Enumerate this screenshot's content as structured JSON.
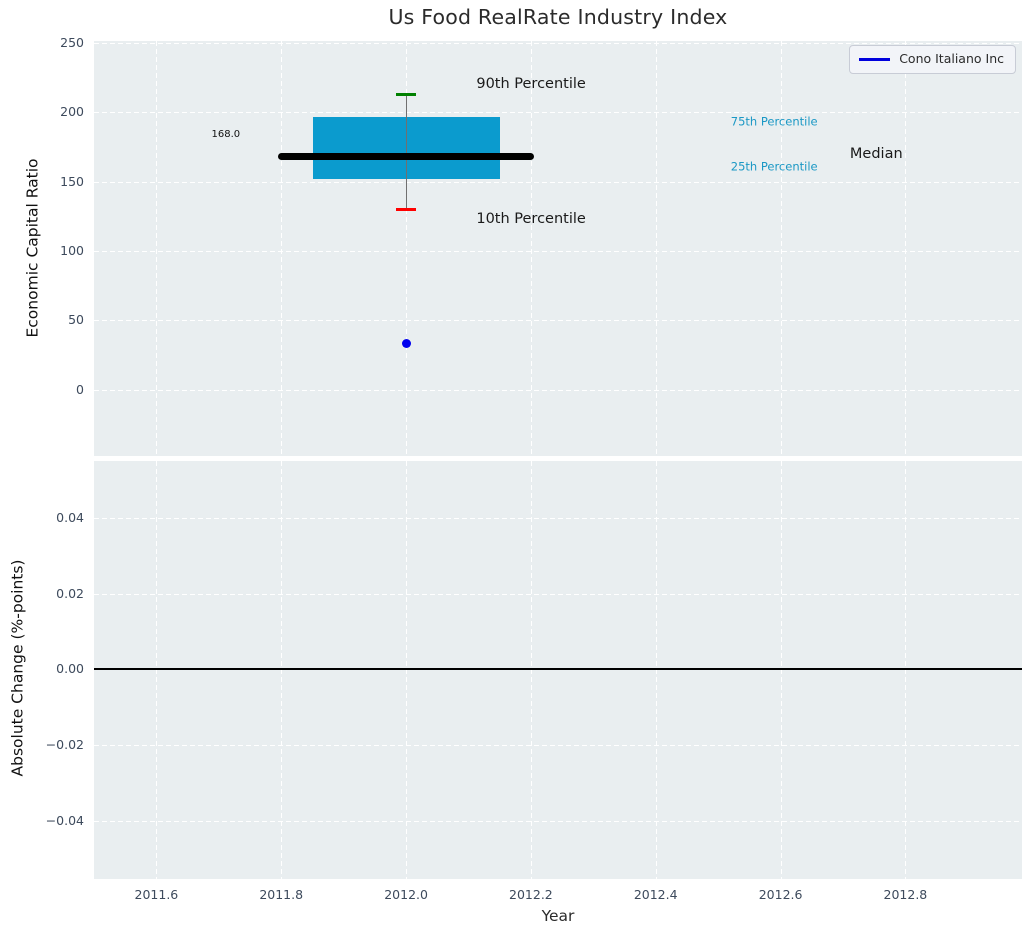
{
  "chart_data": {
    "type": "boxplot",
    "title": "Us Food RealRate Industry Index",
    "xlabel": "Year",
    "xlim": [
      2011.5,
      2012.9868
    ],
    "xticks": [
      2011.6,
      2011.8,
      2012.0,
      2012.2,
      2012.4,
      2012.6,
      2012.8
    ],
    "xtick_labels": [
      "2011.6",
      "2011.8",
      "2012.0",
      "2012.2",
      "2012.4",
      "2012.6",
      "2012.8"
    ],
    "legend": {
      "label": "Cono Italiano Inc",
      "position": "upper right"
    },
    "top": {
      "ylabel": "Economic Capital Ratio",
      "ylim": [
        -47.7,
        251.4
      ],
      "yticks": [
        250,
        200,
        150,
        100,
        50,
        0
      ],
      "ytick_labels": [
        "250",
        "200",
        "150",
        "100",
        "50",
        "0"
      ],
      "grid": true,
      "box": {
        "x": 2012.0,
        "p10": 130,
        "p25": 152,
        "median": 168,
        "p75": 197,
        "p90": 213,
        "median_label": "168.0",
        "box_left": 2011.85,
        "box_right": 2012.15,
        "median_left": 2011.795,
        "median_right": 2012.205,
        "cap_halfwidth_years": 0.0155
      },
      "point": {
        "name": "Cono Italiano Inc",
        "x": 2012.0,
        "y": 33.5
      },
      "annotations": [
        {
          "text": "90th Percentile",
          "fx": 0.471,
          "fy": 0.104,
          "size": 14.5,
          "color": "#1a1a1a"
        },
        {
          "text": "10th Percentile",
          "fx": 0.471,
          "fy": 0.429,
          "size": 14.5,
          "color": "#1a1a1a"
        },
        {
          "text": "75th Percentile",
          "fx": 0.733,
          "fy": 0.195,
          "size": 11.5,
          "color": "#1b98c5"
        },
        {
          "text": "25th Percentile",
          "fx": 0.733,
          "fy": 0.304,
          "size": 11.5,
          "color": "#1b98c5"
        },
        {
          "text": "Median",
          "fx": 0.843,
          "fy": 0.272,
          "size": 14.5,
          "color": "#1a1a1a"
        },
        {
          "text": "168.0",
          "fx": 0.142,
          "fy": 0.226,
          "size": 10,
          "color": "#111111"
        }
      ]
    },
    "bottom": {
      "ylabel": "Absolute Change (%-points)",
      "ylim": [
        -0.0553,
        0.05497
      ],
      "yticks": [
        0.04,
        0.02,
        0.0,
        -0.02,
        -0.04
      ],
      "ytick_labels": [
        "0.04",
        "0.02",
        "0.00",
        "−0.02",
        "−0.04"
      ],
      "grid": true,
      "zero_line": 0.0
    },
    "colors": {
      "plot_bg": "#e9eef0",
      "grid": "#ffffff",
      "box_fill": "#0b9bce",
      "median": "#000000",
      "whisker": "#707070",
      "cap_high": "#008000",
      "cap_low": "#ff0000",
      "point": "#0000ee",
      "legend_line": "#0000dd",
      "tick_label": "#3d4a5c",
      "title": "#2b2b2b",
      "zero_line": "#000000"
    }
  }
}
